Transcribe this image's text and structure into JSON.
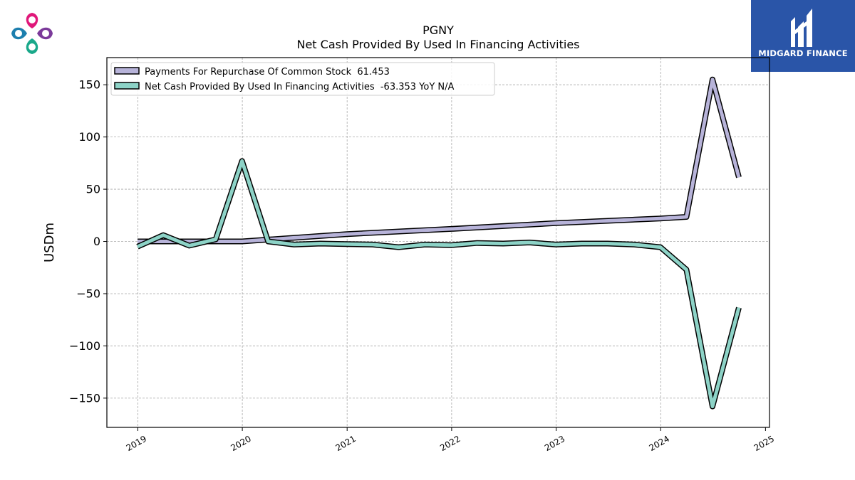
{
  "brand": {
    "name": "MIDGARD FINANCE",
    "logo_icon": "clover-logo-icon",
    "mark_icon": "mf-monogram-icon"
  },
  "chart_data": {
    "type": "line",
    "title": "PGNY",
    "subtitle": "Net Cash Provided By Used In Financing Activities",
    "xlabel": "",
    "ylabel": "USDm",
    "xlim": [
      "2018-09-15",
      "2025-01-15"
    ],
    "ylim": [
      -178,
      176
    ],
    "xticks": [
      "2019",
      "2020",
      "2021",
      "2022",
      "2023",
      "2024",
      "2025"
    ],
    "yticks": [
      -150,
      -100,
      -50,
      0,
      50,
      100,
      150
    ],
    "ytick_labels": [
      "−150",
      "−100",
      "−50",
      "0",
      "50",
      "100",
      "150"
    ],
    "grid": true,
    "legend_position": "top-left",
    "series": [
      {
        "name": "Payments For Repurchase Of Common Stock",
        "legend_label": "Payments For Repurchase Of Common Stock  61.453",
        "color": "#b7b3d9",
        "points": [
          [
            "2018-12-31",
            0
          ],
          [
            "2019-03-31",
            0
          ],
          [
            "2019-06-30",
            0
          ],
          [
            "2019-09-30",
            0
          ],
          [
            "2019-12-31",
            0
          ],
          [
            "2020-12-31",
            7
          ],
          [
            "2021-12-31",
            12
          ],
          [
            "2022-12-31",
            17.5
          ],
          [
            "2023-12-31",
            22
          ],
          [
            "2024-03-31",
            23.5
          ],
          [
            "2024-06-30",
            155
          ],
          [
            "2024-09-30",
            61.453
          ]
        ]
      },
      {
        "name": "Net Cash Provided By Used In Financing Activities",
        "legend_label": "Net Cash Provided By Used In Financing Activities  -63.353 YoY N/A",
        "color": "#8dd3c7",
        "points": [
          [
            "2018-12-31",
            -5
          ],
          [
            "2019-03-31",
            6
          ],
          [
            "2019-06-30",
            -4
          ],
          [
            "2019-09-30",
            2
          ],
          [
            "2019-12-31",
            77
          ],
          [
            "2020-03-31",
            0
          ],
          [
            "2020-06-30",
            -3
          ],
          [
            "2020-09-30",
            -2
          ],
          [
            "2020-12-31",
            -2.5
          ],
          [
            "2021-03-31",
            -3
          ],
          [
            "2021-06-30",
            -5.5
          ],
          [
            "2021-09-30",
            -3
          ],
          [
            "2021-12-31",
            -3.5
          ],
          [
            "2022-03-31",
            -1.5
          ],
          [
            "2022-06-30",
            -2
          ],
          [
            "2022-09-30",
            -1
          ],
          [
            "2022-12-31",
            -3
          ],
          [
            "2023-03-31",
            -2
          ],
          [
            "2023-06-30",
            -2
          ],
          [
            "2023-09-30",
            -3
          ],
          [
            "2023-12-31",
            -5.5
          ],
          [
            "2024-03-31",
            -27
          ],
          [
            "2024-06-30",
            -158
          ],
          [
            "2024-09-30",
            -63.353
          ]
        ]
      }
    ]
  }
}
